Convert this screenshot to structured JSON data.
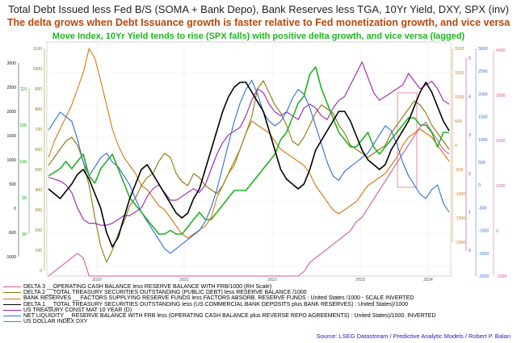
{
  "titles": {
    "line1": "Total Debt Issued less Fed B/S (SOMA + Bank Depo), Bank Reserves less TGA, 10Yr Yield, DXY, SPX (inv)",
    "line2": "The delta grows when Debt Issuance growth is faster relative to Fed monetization growth, and vice versa",
    "line3": "Move Index, 10Yr Yield tends to rise (SPX falls) with positive delta growth, and vice versa (lagged)"
  },
  "legend": [
    {
      "label": "DELTA 3 __OPERATING CASH BALANCE less RESERVE BALANCE WITH FRB/1000 (RH Scale)",
      "color": "#d05aa0"
    },
    {
      "label": "DELTA 2 __TOTAL TREASURY SECURITIES OUTSTANDING (PUBLIC DEBT) less RESERVE BALANCE /1000",
      "color": "#8a7a10"
    },
    {
      "label": "BANK RESERVES __ FACTORS SUPPLYING RESERVE FUNDS less FACTORS ABSORB. RESERVE FUNDS : United States /1000 - SCALE INVERTED",
      "color": "#d27a12"
    },
    {
      "label": "DELTA 1 __TOTAL TREASURY SECURITIES OUTSTANDING less (US COMMERCIAL BANK DEPOSITS plus BANK RESERVES) : United States)/1000",
      "color": "#000000"
    },
    {
      "label": "US TREASURY CONST MAT 10 YEAR (D)",
      "color": "#9a1fb0"
    },
    {
      "label": "NET LIQUIDITY __RESERVE BALANCE WITH FRB less (OPERATING CASH BALANCE plus REVERSE REPO AGREEMENTS) : United States)/1000. INVERTED",
      "color": "#2f6fd6"
    },
    {
      "label": "US DOLLAR INDEX DXY",
      "color": "#22b022"
    }
  ],
  "source": "Source: LSEG Datastream / Predictive Analytic Models / Robert P. Balan",
  "chart_data": {
    "type": "line",
    "x_axis": {
      "ticks": [
        "2020",
        "2021",
        "2022",
        "2023",
        "2024"
      ]
    },
    "left_axis_outer": {
      "ticks": [
        3000,
        2500,
        2000,
        1500,
        1000,
        500,
        0,
        -500,
        -1000
      ]
    },
    "left_axis_inner": {
      "ticks": [
        110,
        105,
        100,
        95,
        90
      ]
    },
    "left_axis_middle": {
      "ticks": [
        1100,
        1000,
        900,
        800,
        700,
        600,
        500,
        400,
        300,
        200,
        100,
        0
      ]
    },
    "right_axis_1": {
      "ticks": [
        2000,
        1500,
        1000,
        500,
        0,
        -500,
        -1000,
        -1500,
        -2000
      ]
    },
    "right_axis_2": {
      "ticks": [
        3000,
        2500,
        2000,
        1500,
        1000,
        500,
        0,
        -500,
        -1000,
        -1500,
        -2000
      ]
    },
    "right_axis_3": {
      "ticks": [
        5,
        4,
        3,
        2,
        1,
        0
      ]
    },
    "right_axis_4": {
      "ticks": [
        -1000,
        0,
        1000,
        2000,
        3000,
        4000
      ]
    },
    "series": [
      {
        "name": "US DOLLAR INDEX DXY",
        "color": "#22b022",
        "axis": "left_axis_inner",
        "values": [
          98,
          98.5,
          99,
          100,
          99,
          100,
          101,
          98,
          97,
          99,
          100,
          101,
          99,
          97,
          95,
          94,
          93,
          92,
          91,
          90,
          90,
          90.5,
          90,
          90,
          91,
          92,
          93,
          92,
          92,
          93,
          94,
          95,
          96,
          96,
          96,
          97,
          98,
          99,
          100,
          101,
          103,
          104,
          106,
          108,
          109,
          112,
          113,
          110,
          108,
          106,
          104,
          103,
          102,
          102,
          103,
          104,
          102,
          101,
          102,
          103,
          104,
          105,
          106,
          106,
          105,
          105,
          104,
          102,
          104,
          104
        ]
      },
      {
        "name": "DELTA 2 __TOTAL TREASURY SECURITIES OUTSTANDING (PUBLIC DEBT) less RESERVE BALANCE /1000",
        "color": "#8a7a10",
        "axis": "left_axis_middle",
        "values": [
          520,
          560,
          600,
          640,
          660,
          620,
          540,
          420,
          260,
          120,
          40,
          100,
          180,
          240,
          320,
          360,
          420,
          460,
          480,
          540,
          580,
          560,
          480,
          440,
          420,
          480,
          460,
          420,
          400,
          380,
          420,
          480,
          540,
          600,
          680,
          760,
          900,
          940,
          880,
          820,
          780,
          720,
          640,
          620,
          660,
          720,
          780,
          820,
          800,
          780,
          720,
          680,
          620,
          600,
          580,
          560,
          580,
          600,
          620,
          680,
          720,
          760,
          800,
          840,
          820,
          780,
          720,
          680,
          640,
          600
        ]
      },
      {
        "name": "BANK RESERVES __ FACTORS SUPPLYING RESERVE FUNDS less FACTORS ABSORB. RESERVE FUNDS : United States /1000 - SCALE INVERTED",
        "color": "#d27a12",
        "axis": "left_axis_middle",
        "values": [
          560,
          640,
          700,
          760,
          820,
          900,
          980,
          1100,
          1050,
          940,
          820,
          700,
          620,
          560,
          520,
          480,
          420,
          400,
          360,
          320,
          300,
          260,
          220,
          180,
          160,
          180,
          200,
          220,
          260,
          360,
          420,
          480,
          520,
          600,
          680,
          740,
          720,
          700,
          680,
          640,
          600,
          580,
          560,
          540,
          520,
          480,
          420,
          380,
          340,
          300,
          280,
          300,
          320,
          340,
          380,
          420,
          440,
          460,
          480,
          520,
          560,
          620,
          660,
          680,
          700,
          680,
          660,
          620,
          580,
          540
        ]
      },
      {
        "name": "DELTA 1 __TOTAL TREASURY SECURITIES OUTSTANDING less (US COMMERCIAL BANK DEPOSITS plus BANK RESERVES) : United States)/1000",
        "color": "#000000",
        "axis": "left_axis_outer",
        "values": [
          400,
          300,
          200,
          350,
          500,
          700,
          800,
          600,
          300,
          0,
          -500,
          -800,
          -600,
          -200,
          200,
          500,
          800,
          900,
          700,
          500,
          300,
          100,
          -100,
          -200,
          -100,
          200,
          400,
          800,
          1200,
          1600,
          2000,
          2300,
          2500,
          2600,
          2600,
          2400,
          2200,
          2000,
          1600,
          1200,
          800,
          600,
          500,
          400,
          500,
          800,
          1200,
          1400,
          1600,
          1800,
          2000,
          2000,
          1800,
          1500,
          1200,
          1000,
          900,
          800,
          900,
          1200,
          1400,
          1600,
          1800,
          2100,
          2400,
          2600,
          2400,
          2100,
          1800,
          1600
        ]
      },
      {
        "name": "NET LIQUIDITY __RESERVE BALANCE WITH FRB less (OPERATING CASH BALANCE plus REVERSE REPO AGREEMENTS) : United States)/1000. INVERTED",
        "color": "#2f6fd6",
        "axis": "right_axis_2",
        "values": [
          1200,
          1400,
          1600,
          1500,
          1400,
          1000,
          500,
          200,
          400,
          600,
          700,
          500,
          400,
          200,
          0,
          -300,
          -600,
          -800,
          -1000,
          -1200,
          -1400,
          -1500,
          -1400,
          -1300,
          -1200,
          -1100,
          -1000,
          -800,
          -500,
          -100,
          400,
          900,
          1400,
          1800,
          2100,
          2300,
          2000,
          1600,
          1400,
          1300,
          1400,
          1600,
          1900,
          2100,
          2000,
          1700,
          1300,
          900,
          500,
          200,
          100,
          300,
          400,
          500,
          600,
          700,
          900,
          1100,
          1300,
          1200,
          900,
          500,
          200,
          0,
          -200,
          -300,
          -100,
          0,
          -400,
          -600
        ]
      },
      {
        "name": "US TREASURY CONST MAT 10 YEAR (D)",
        "color": "#9a1fb0",
        "axis": "right_axis_3",
        "values": [
          1.9,
          1.85,
          1.8,
          1.7,
          1.5,
          1.1,
          0.8,
          0.7,
          0.7,
          0.65,
          0.65,
          0.7,
          0.8,
          0.9,
          0.9,
          1.0,
          1.1,
          1.4,
          1.6,
          1.7,
          1.5,
          1.3,
          1.3,
          1.4,
          1.5,
          1.6,
          1.5,
          1.7,
          2.1,
          2.5,
          2.8,
          3.0,
          3.1,
          3.2,
          3.5,
          3.9,
          4.2,
          4.1,
          3.8,
          3.6,
          3.5,
          3.6,
          3.5,
          3.4,
          3.7,
          3.8,
          3.7,
          3.5,
          3.4,
          3.7,
          3.9,
          4.0,
          4.3,
          4.6,
          4.9,
          4.5,
          4.1,
          3.9,
          4.0,
          4.1,
          4.2,
          4.3,
          4.6,
          4.4,
          4.2,
          4.3,
          4.4,
          4.2,
          3.9,
          3.8
        ]
      },
      {
        "name": "DELTA 3 __OPERATING CASH BALANCE less RESERVE BALANCE WITH FRB/1000 (RH Scale)",
        "color": "#d05aa0",
        "axis": "right_axis_4",
        "values": [
          -1000,
          -900,
          -800,
          -700,
          -600,
          -500,
          -600,
          -1200,
          -2000,
          -2200,
          -2400,
          -2300,
          -2200,
          -2100,
          -2200,
          -2500,
          -2600,
          -2700,
          -2800,
          -2900,
          -3000,
          -3000,
          -2900,
          -2800,
          -2700,
          -2600,
          -2500,
          -2400,
          -2300,
          -2200,
          -2100,
          -2000,
          -2200,
          -2300,
          -2200,
          -2100,
          -2000,
          -1800,
          -1600,
          -1500,
          -1400,
          -1300,
          -1200,
          -1000,
          -900,
          -700,
          -600,
          -500,
          -400,
          -300,
          -200,
          -100,
          0,
          200,
          300,
          500,
          700,
          900,
          1100,
          1300,
          1500,
          1700,
          1900,
          2100,
          2300,
          2400,
          2200,
          2000,
          1800,
          1700
        ]
      }
    ]
  }
}
